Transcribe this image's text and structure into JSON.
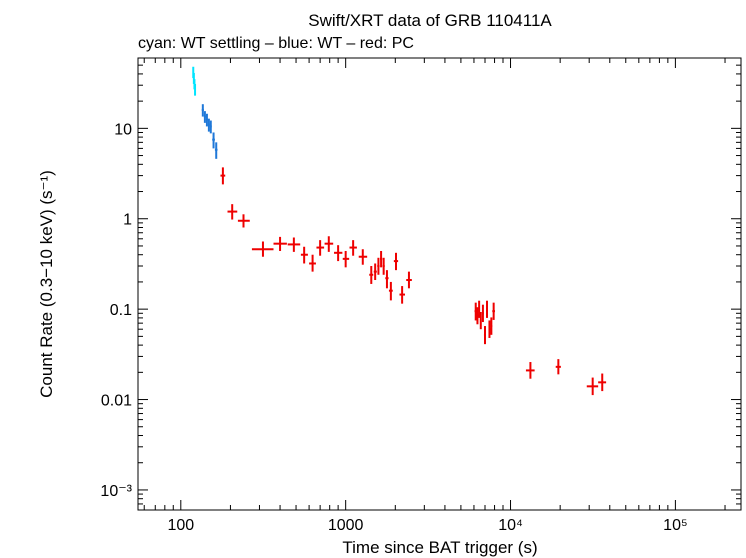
{
  "chart_data": {
    "type": "scatter",
    "title": "Swift/XRT data of GRB 110411A",
    "subtitle": "cyan: WT settling – blue: WT – red: PC",
    "xlabel": "Time since BAT trigger (s)",
    "ylabel": "Count Rate (0.3−10 keV) (s⁻¹)",
    "xscale": "log",
    "yscale": "log",
    "xlim": [
      55,
      250000
    ],
    "ylim": [
      0.0006,
      60
    ],
    "x_ticks": [
      {
        "value": 100,
        "label": "100"
      },
      {
        "value": 1000,
        "label": "1000"
      },
      {
        "value": 10000,
        "label": "10⁴"
      },
      {
        "value": 100000,
        "label": "10⁵"
      }
    ],
    "y_ticks": [
      {
        "value": 0.001,
        "label": "10⁻³"
      },
      {
        "value": 0.01,
        "label": "0.01"
      },
      {
        "value": 0.1,
        "label": "0.1"
      },
      {
        "value": 1,
        "label": "1"
      },
      {
        "value": 10,
        "label": "10"
      }
    ],
    "colors": {
      "wt_settling": "#00e5ff",
      "wt": "#1f78d8",
      "pc": "#ee0000",
      "axis": "#000000"
    },
    "series": [
      {
        "name": "WT settling",
        "color": "#00e5ff",
        "points": [
          {
            "x": 119,
            "xlo": 118.5,
            "xhi": 119.5,
            "y": 42,
            "ylo": 36,
            "yhi": 48
          },
          {
            "x": 120,
            "xlo": 119.5,
            "xhi": 120.5,
            "y": 36,
            "ylo": 31,
            "yhi": 41
          },
          {
            "x": 121,
            "xlo": 120.5,
            "xhi": 121.5,
            "y": 31,
            "ylo": 27,
            "yhi": 35
          },
          {
            "x": 122,
            "xlo": 121.5,
            "xhi": 122.5,
            "y": 27,
            "ylo": 23,
            "yhi": 31
          }
        ]
      },
      {
        "name": "WT",
        "color": "#1f78d8",
        "points": [
          {
            "x": 136,
            "xlo": 134,
            "xhi": 138,
            "y": 16,
            "ylo": 13.5,
            "yhi": 18.5
          },
          {
            "x": 140,
            "xlo": 138,
            "xhi": 142,
            "y": 13.5,
            "ylo": 11.5,
            "yhi": 15.5
          },
          {
            "x": 144,
            "xlo": 142,
            "xhi": 146,
            "y": 12.5,
            "ylo": 10.5,
            "yhi": 14.5
          },
          {
            "x": 148,
            "xlo": 146,
            "xhi": 150,
            "y": 11,
            "ylo": 9.2,
            "yhi": 12.8
          },
          {
            "x": 152,
            "xlo": 150,
            "xhi": 154,
            "y": 10.5,
            "ylo": 8.8,
            "yhi": 12.2
          },
          {
            "x": 158,
            "xlo": 155,
            "xhi": 161,
            "y": 7.5,
            "ylo": 6.0,
            "yhi": 9.0
          },
          {
            "x": 164,
            "xlo": 161,
            "xhi": 167,
            "y": 5.8,
            "ylo": 4.6,
            "yhi": 7.0
          }
        ]
      },
      {
        "name": "PC",
        "color": "#ee0000",
        "points": [
          {
            "x": 180,
            "xlo": 174,
            "xhi": 186,
            "y": 3.0,
            "ylo": 2.4,
            "yhi": 3.7
          },
          {
            "x": 205,
            "xlo": 192,
            "xhi": 220,
            "y": 1.2,
            "ylo": 0.98,
            "yhi": 1.45
          },
          {
            "x": 240,
            "xlo": 222,
            "xhi": 262,
            "y": 0.95,
            "ylo": 0.8,
            "yhi": 1.12
          },
          {
            "x": 315,
            "xlo": 270,
            "xhi": 365,
            "y": 0.46,
            "ylo": 0.38,
            "yhi": 0.56
          },
          {
            "x": 400,
            "xlo": 365,
            "xhi": 440,
            "y": 0.53,
            "ylo": 0.44,
            "yhi": 0.63
          },
          {
            "x": 485,
            "xlo": 445,
            "xhi": 530,
            "y": 0.52,
            "ylo": 0.43,
            "yhi": 0.62
          },
          {
            "x": 560,
            "xlo": 535,
            "xhi": 590,
            "y": 0.4,
            "ylo": 0.32,
            "yhi": 0.49
          },
          {
            "x": 630,
            "xlo": 600,
            "xhi": 660,
            "y": 0.32,
            "ylo": 0.26,
            "yhi": 0.4
          },
          {
            "x": 700,
            "xlo": 665,
            "xhi": 740,
            "y": 0.48,
            "ylo": 0.39,
            "yhi": 0.58
          },
          {
            "x": 790,
            "xlo": 745,
            "xhi": 840,
            "y": 0.53,
            "ylo": 0.43,
            "yhi": 0.64
          },
          {
            "x": 900,
            "xlo": 850,
            "xhi": 955,
            "y": 0.42,
            "ylo": 0.34,
            "yhi": 0.51
          },
          {
            "x": 1000,
            "xlo": 960,
            "xhi": 1050,
            "y": 0.36,
            "ylo": 0.29,
            "yhi": 0.44
          },
          {
            "x": 1110,
            "xlo": 1055,
            "xhi": 1170,
            "y": 0.48,
            "ylo": 0.39,
            "yhi": 0.58
          },
          {
            "x": 1270,
            "xlo": 1200,
            "xhi": 1350,
            "y": 0.38,
            "ylo": 0.31,
            "yhi": 0.46
          },
          {
            "x": 1430,
            "xlo": 1390,
            "xhi": 1470,
            "y": 0.24,
            "ylo": 0.19,
            "yhi": 0.3
          },
          {
            "x": 1510,
            "xlo": 1480,
            "xhi": 1545,
            "y": 0.26,
            "ylo": 0.21,
            "yhi": 0.32
          },
          {
            "x": 1580,
            "xlo": 1555,
            "xhi": 1605,
            "y": 0.3,
            "ylo": 0.24,
            "yhi": 0.37
          },
          {
            "x": 1640,
            "xlo": 1615,
            "xhi": 1665,
            "y": 0.36,
            "ylo": 0.29,
            "yhi": 0.44
          },
          {
            "x": 1700,
            "xlo": 1675,
            "xhi": 1725,
            "y": 0.3,
            "ylo": 0.24,
            "yhi": 0.37
          },
          {
            "x": 1780,
            "xlo": 1740,
            "xhi": 1820,
            "y": 0.22,
            "ylo": 0.17,
            "yhi": 0.27
          },
          {
            "x": 1880,
            "xlo": 1830,
            "xhi": 1930,
            "y": 0.16,
            "ylo": 0.125,
            "yhi": 0.2
          },
          {
            "x": 2020,
            "xlo": 1960,
            "xhi": 2080,
            "y": 0.34,
            "ylo": 0.27,
            "yhi": 0.42
          },
          {
            "x": 2200,
            "xlo": 2120,
            "xhi": 2290,
            "y": 0.145,
            "ylo": 0.115,
            "yhi": 0.18
          },
          {
            "x": 2420,
            "xlo": 2330,
            "xhi": 2520,
            "y": 0.21,
            "ylo": 0.17,
            "yhi": 0.26
          },
          {
            "x": 6150,
            "xlo": 6050,
            "xhi": 6250,
            "y": 0.095,
            "ylo": 0.075,
            "yhi": 0.118
          },
          {
            "x": 6300,
            "xlo": 6220,
            "xhi": 6380,
            "y": 0.085,
            "ylo": 0.068,
            "yhi": 0.105
          },
          {
            "x": 6450,
            "xlo": 6380,
            "xhi": 6520,
            "y": 0.1,
            "ylo": 0.08,
            "yhi": 0.124
          },
          {
            "x": 6600,
            "xlo": 6530,
            "xhi": 6670,
            "y": 0.075,
            "ylo": 0.06,
            "yhi": 0.093
          },
          {
            "x": 6800,
            "xlo": 6720,
            "xhi": 6880,
            "y": 0.09,
            "ylo": 0.072,
            "yhi": 0.112
          },
          {
            "x": 7000,
            "xlo": 6900,
            "xhi": 7100,
            "y": 0.052,
            "ylo": 0.041,
            "yhi": 0.065
          },
          {
            "x": 7200,
            "xlo": 7110,
            "xhi": 7290,
            "y": 0.1,
            "ylo": 0.08,
            "yhi": 0.124
          },
          {
            "x": 7450,
            "xlo": 7350,
            "xhi": 7550,
            "y": 0.06,
            "ylo": 0.048,
            "yhi": 0.075
          },
          {
            "x": 7650,
            "xlo": 7560,
            "xhi": 7740,
            "y": 0.065,
            "ylo": 0.052,
            "yhi": 0.081
          },
          {
            "x": 7900,
            "xlo": 7750,
            "xhi": 8050,
            "y": 0.095,
            "ylo": 0.076,
            "yhi": 0.118
          },
          {
            "x": 13200,
            "xlo": 12400,
            "xhi": 14000,
            "y": 0.021,
            "ylo": 0.017,
            "yhi": 0.026
          },
          {
            "x": 19500,
            "xlo": 18800,
            "xhi": 20200,
            "y": 0.023,
            "ylo": 0.019,
            "yhi": 0.028
          },
          {
            "x": 31500,
            "xlo": 29000,
            "xhi": 34000,
            "y": 0.014,
            "ylo": 0.0112,
            "yhi": 0.0175
          },
          {
            "x": 36000,
            "xlo": 34000,
            "xhi": 38000,
            "y": 0.0155,
            "ylo": 0.0124,
            "yhi": 0.0194
          }
        ]
      }
    ]
  }
}
